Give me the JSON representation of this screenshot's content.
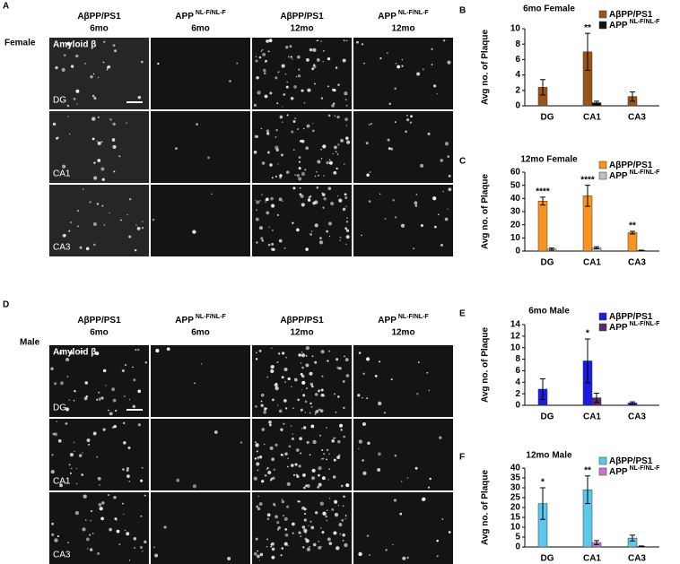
{
  "figure": {
    "panel_labels": [
      "A",
      "B",
      "C",
      "D",
      "E",
      "F"
    ],
    "sections": [
      {
        "sex": "Female",
        "stain": "Amyloid β",
        "rows": [
          "DG",
          "CA1",
          "CA3"
        ],
        "columns": [
          {
            "name": "AβPP/PS1",
            "age": "6mo"
          },
          {
            "name": "APP",
            "sup": "NL-F/NL-F",
            "age": "6mo"
          },
          {
            "name": "AβPP/PS1",
            "age": "12mo"
          },
          {
            "name": "APP",
            "sup": "NL-F/NL-F",
            "age": "12mo"
          }
        ]
      },
      {
        "sex": "Male",
        "stain": "Amyloid β",
        "rows": [
          "DG",
          "CA1",
          "CA3"
        ],
        "columns": [
          {
            "name": "AβPP/PS1",
            "age": "6mo"
          },
          {
            "name": "APP",
            "sup": "NL-F/NL-F",
            "age": "6mo"
          },
          {
            "name": "AβPP/PS1",
            "age": "12mo"
          },
          {
            "name": "APP",
            "sup": "NL-F/NL-F",
            "age": "12mo"
          }
        ]
      }
    ]
  },
  "chart_data": [
    {
      "type": "bar",
      "title": "6mo Female",
      "y_label": "Avg no. of Plaque",
      "categories": [
        "DG",
        "CA1",
        "CA3"
      ],
      "ylim": [
        0,
        10
      ],
      "yticks": [
        0,
        2,
        4,
        6,
        8,
        10
      ],
      "legend": "top-right",
      "series": [
        {
          "name": "AβPP/PS1",
          "color": "#9a5418",
          "values": [
            2.4,
            7.0,
            1.2
          ],
          "errors": [
            1.0,
            2.4,
            0.6
          ],
          "annotations": [
            null,
            "**",
            null
          ]
        },
        {
          "name": "APP",
          "name_sup": "NL-F/NL-F",
          "color": "#111111",
          "values": [
            0,
            0.4,
            0
          ],
          "errors": [
            0,
            0.2,
            0
          ]
        }
      ]
    },
    {
      "type": "bar",
      "title": "12mo Female",
      "y_label": "Avg no. of Plaque",
      "categories": [
        "DG",
        "CA1",
        "CA3"
      ],
      "ylim": [
        0,
        60
      ],
      "yticks": [
        0,
        10,
        20,
        30,
        40,
        50,
        60
      ],
      "legend": "top-right",
      "series": [
        {
          "name": "AβPP/PS1",
          "color": "#f7941d",
          "values": [
            38,
            42,
            14
          ],
          "errors": [
            3,
            8,
            1
          ],
          "annotations": [
            "****",
            "****",
            "**"
          ]
        },
        {
          "name": "APP",
          "name_sup": "NL-F/NL-F",
          "color": "#c0c0c0",
          "values": [
            1.5,
            2.5,
            0.5
          ],
          "errors": [
            0.8,
            0.8,
            0.2
          ]
        }
      ]
    },
    {
      "type": "bar",
      "title": "6mo Male",
      "y_label": "Avg no. of Plaque",
      "categories": [
        "DG",
        "CA1",
        "CA3"
      ],
      "ylim": [
        0,
        14
      ],
      "yticks": [
        0,
        2,
        4,
        6,
        8,
        10,
        12,
        14
      ],
      "legend": "top-right",
      "series": [
        {
          "name": "AβPP/PS1",
          "color": "#1c1ce0",
          "values": [
            2.8,
            7.7,
            0.4
          ],
          "errors": [
            1.8,
            3.8,
            0.2
          ],
          "annotations": [
            null,
            "*",
            null
          ]
        },
        {
          "name": "APP",
          "name_sup": "NL-F/NL-F",
          "color": "#5a2a6c",
          "values": [
            0,
            1.3,
            0
          ],
          "errors": [
            0,
            0.8,
            0
          ]
        }
      ]
    },
    {
      "type": "bar",
      "title": "12mo Male",
      "y_label": "Avg no. of Plaque",
      "categories": [
        "DG",
        "CA1",
        "CA3"
      ],
      "ylim": [
        0,
        40
      ],
      "yticks": [
        0,
        5,
        10,
        15,
        20,
        25,
        30,
        35,
        40
      ],
      "legend": "top-right",
      "series": [
        {
          "name": "AβPP/PS1",
          "color": "#5cc9ea",
          "values": [
            22,
            29,
            4.5
          ],
          "errors": [
            8,
            7,
            1.5
          ],
          "annotations": [
            "*",
            "**",
            null
          ]
        },
        {
          "name": "APP",
          "name_sup": "NL-F/NL-F",
          "color": "#d070d8",
          "values": [
            0,
            2.2,
            0.3
          ],
          "errors": [
            0,
            1,
            0.2
          ]
        }
      ]
    }
  ]
}
